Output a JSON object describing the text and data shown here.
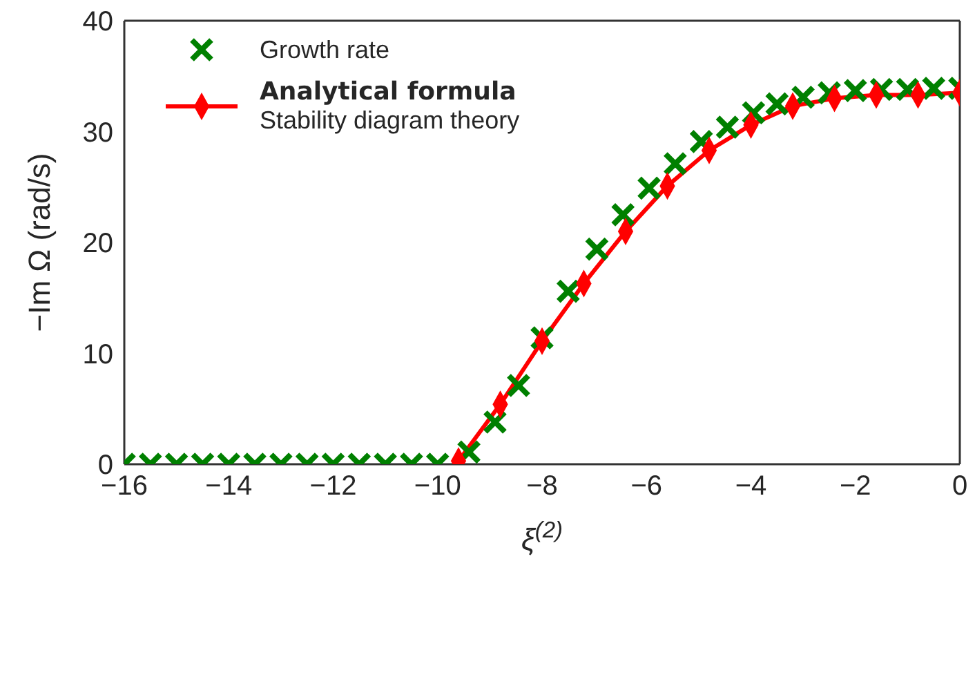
{
  "chart_data": {
    "type": "line",
    "xlabel": "ξ$^{(2)}$",
    "ylabel": "−Im Ω (rad/s)",
    "xlim": [
      -16,
      0
    ],
    "xticks": [
      {
        "value": -16,
        "label": "−16"
      },
      {
        "value": -14,
        "label": "−14"
      },
      {
        "value": -12,
        "label": "−12"
      },
      {
        "value": -10,
        "label": "−10"
      },
      {
        "value": -8,
        "label": "−8"
      },
      {
        "value": -6,
        "label": "−6"
      },
      {
        "value": -4,
        "label": "−4"
      },
      {
        "value": -2,
        "label": "−2"
      },
      0
    ],
    "ylim": [
      0,
      40
    ],
    "yticks": [
      0,
      10,
      20,
      30,
      40
    ],
    "legend": "top left",
    "series": [
      {
        "name": "Growth rate",
        "type": "scatter",
        "marker": "cross",
        "color": "#008000",
        "x": [
          -16,
          -15.5,
          -15,
          -14.5,
          -14,
          -13.5,
          -13,
          -12.5,
          -12,
          -11.5,
          -11,
          -10.5,
          -10,
          -9.4,
          -8.9,
          -8.45,
          -8,
          -7.5,
          -6.95,
          -6.45,
          -5.95,
          -5.45,
          -4.95,
          -4.45,
          -3.95,
          -3.5,
          -3,
          -2.5,
          -2,
          -1.5,
          -1,
          -0.5,
          0
        ],
        "values": [
          0,
          0,
          0,
          0,
          0,
          0,
          0,
          0,
          0,
          0,
          0,
          0,
          0,
          1.1,
          3.8,
          7.1,
          11.4,
          15.6,
          19.4,
          22.5,
          24.9,
          27.1,
          29.1,
          30.4,
          31.7,
          32.5,
          33.1,
          33.5,
          33.7,
          33.8,
          33.8,
          33.9,
          33.9
        ]
      },
      {
        "name": "Analytical formula\nStability diagram theory",
        "marker": "diamond",
        "line_style": "solid",
        "color": "#ff0000",
        "x": [
          -9.6,
          -8.8,
          -8,
          -7.2,
          -6.4,
          -5.6,
          -4.8,
          -4,
          -3.2,
          -2.4,
          -1.6,
          -0.8,
          0
        ],
        "values": [
          0.3,
          5.4,
          11.1,
          16.3,
          21.0,
          25.1,
          28.3,
          30.6,
          32.3,
          33.0,
          33.3,
          33.3,
          33.5
        ]
      }
    ]
  }
}
